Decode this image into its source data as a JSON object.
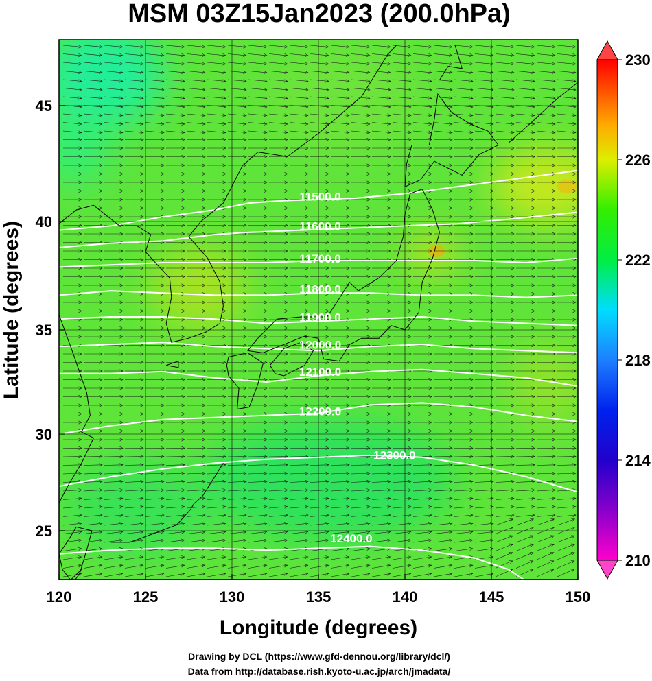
{
  "title": "MSM 03Z15Jan2023 (200.0hPa)",
  "xlabel": "Longitude (degrees)",
  "ylabel": "Latitude  (degrees)",
  "x_ticks": [
    "120",
    "125",
    "130",
    "135",
    "140",
    "145",
    "150"
  ],
  "y_ticks": [
    "25",
    "30",
    "35",
    "40",
    "45"
  ],
  "colorbar_ticks": [
    "210",
    "214",
    "218",
    "222",
    "226",
    "230"
  ],
  "credits": {
    "line1": "Drawing by DCL (https://www.gfd-dennou.org/library/dcl/)",
    "line2": "Data from http://database.rish.kyoto-u.ac.jp/arch/jmadata/"
  },
  "map_data": {
    "type": "weather-map",
    "lon_range": [
      120,
      150
    ],
    "lat_range": [
      22.4,
      47.6
    ],
    "shading_range": [
      210,
      230
    ],
    "colors": {
      "magenta": "#ff00cc",
      "purple": "#8800cc",
      "blue": "#0000dd",
      "sky": "#1e7fff",
      "cyan": "#00ddff",
      "green": "#00ee44",
      "yellowgreen": "#aaee00",
      "yellow": "#ffee00",
      "orange": "#ff8800",
      "red": "#ff0000",
      "contour": "#ffffff",
      "coast": "#000000"
    },
    "contours": [
      {
        "label": "11500.0",
        "label_lon": 135.1,
        "label_lat": 40.9
      },
      {
        "label": "11600.0",
        "label_lon": 135.1,
        "label_lat": 39.6
      },
      {
        "label": "11700.0",
        "label_lon": 135.1,
        "label_lat": 38.1
      },
      {
        "label": "11800.0",
        "label_lon": 135.1,
        "label_lat": 36.7
      },
      {
        "label": "11900.0",
        "label_lon": 135.1,
        "label_lat": 35.4
      },
      {
        "label": "12000.0",
        "label_lon": 135.1,
        "label_lat": 34.1
      },
      {
        "label": "12100.0",
        "label_lon": 135.1,
        "label_lat": 32.8
      },
      {
        "label": "12200.0",
        "label_lon": 135.1,
        "label_lat": 30.9
      },
      {
        "label": "12300.0",
        "label_lon": 139.4,
        "label_lat": 28.7
      },
      {
        "label": "12400.0",
        "label_lon": 136.9,
        "label_lat": 24.4
      }
    ]
  }
}
